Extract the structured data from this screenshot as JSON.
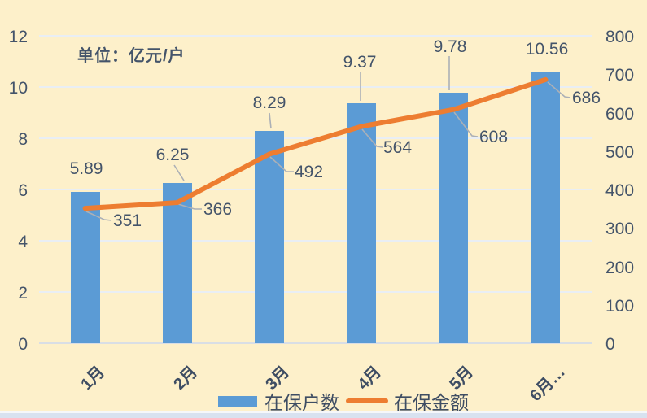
{
  "unit_label": "单位：亿元/户",
  "chart_data": {
    "type": "bar+line combo",
    "categories": [
      "1月",
      "2月",
      "3月",
      "4月",
      "5月",
      "6月…"
    ],
    "series": [
      {
        "name": "在保户数",
        "type": "bar",
        "axis": "left",
        "color": "#5B9BD5",
        "values": [
          5.89,
          6.25,
          8.29,
          9.37,
          9.78,
          10.56
        ]
      },
      {
        "name": "在保金额",
        "type": "line",
        "axis": "right",
        "color": "#ED7D31",
        "values": [
          351,
          366,
          492,
          564,
          608,
          686
        ]
      }
    ],
    "left_axis": {
      "min": 0,
      "max": 12,
      "step": 2,
      "ticks": [
        "0",
        "2",
        "4",
        "6",
        "8",
        "10",
        "12"
      ]
    },
    "right_axis": {
      "min": 0,
      "max": 800,
      "step": 100,
      "ticks": [
        "0",
        "100",
        "200",
        "300",
        "400",
        "500",
        "600",
        "700",
        "800"
      ]
    },
    "title": "",
    "unit_label": "单位：亿元/户",
    "grid": true,
    "legend_position": "bottom",
    "data_labels_shown": true
  },
  "colors": {
    "background": "#FDF0CA",
    "bar": "#5B9BD5",
    "line": "#ED7D31",
    "text": "#44546A",
    "gridline": "#E9EEF4",
    "leader_line": "#ACB0B6",
    "bottom_edge": "#D8E2F0"
  },
  "legend": {
    "bar_label": "在保户数",
    "line_label": "在保金额"
  }
}
